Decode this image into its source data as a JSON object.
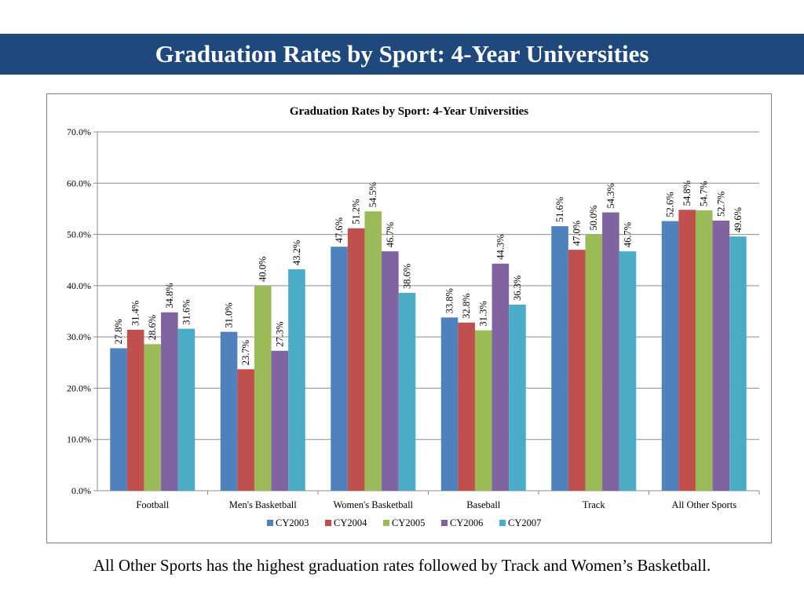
{
  "slide": {
    "title": "Graduation Rates by Sport: 4-Year Universities",
    "caption": "All Other Sports has the highest graduation rates followed by Track and Women’s Basketball."
  },
  "chart_data": {
    "type": "bar",
    "title": "Graduation Rates by Sport: 4-Year Universities",
    "xlabel": "",
    "ylabel": "",
    "ylim": [
      0,
      70
    ],
    "yticks": [
      "0.0%",
      "10.0%",
      "20.0%",
      "30.0%",
      "40.0%",
      "50.0%",
      "60.0%",
      "70.0%"
    ],
    "grid": true,
    "legend_position": "bottom",
    "categories": [
      "Football",
      "Men's Basketball",
      "Women's Basketball",
      "Baseball",
      "Track",
      "All Other Sports"
    ],
    "series": [
      {
        "name": "CY2003",
        "color": "#4f81bd",
        "values": [
          27.8,
          31.0,
          47.6,
          33.8,
          51.6,
          52.6
        ],
        "labels": [
          "27.8%",
          "31.0%",
          "47.6%",
          "33.8%",
          "51.6%",
          "52.6%"
        ]
      },
      {
        "name": "CY2004",
        "color": "#c0504d",
        "values": [
          31.4,
          23.7,
          51.2,
          32.8,
          47.0,
          54.8
        ],
        "labels": [
          "31.4%",
          "23.7%",
          "51.2%",
          "32.8%",
          "47.0%",
          "54.8%"
        ]
      },
      {
        "name": "CY2005",
        "color": "#9bbb59",
        "values": [
          28.6,
          40.0,
          54.5,
          31.3,
          50.0,
          54.7
        ],
        "labels": [
          "28.6%",
          "40.0%",
          "54.5%",
          "31.3%",
          "50.0%",
          "54.7%"
        ]
      },
      {
        "name": "CY2006",
        "color": "#8064a2",
        "values": [
          34.8,
          27.3,
          46.7,
          44.3,
          54.3,
          52.7
        ],
        "labels": [
          "34.8%",
          "27.3%",
          "46.7%",
          "44.3%",
          "54.3%",
          "52.7%"
        ]
      },
      {
        "name": "CY2007",
        "color": "#4bacc6",
        "values": [
          31.6,
          43.2,
          38.6,
          36.3,
          46.7,
          49.6
        ],
        "labels": [
          "31.6%",
          "43.2%",
          "38.6%",
          "36.3%",
          "46.7%",
          "49.6%"
        ]
      }
    ]
  }
}
